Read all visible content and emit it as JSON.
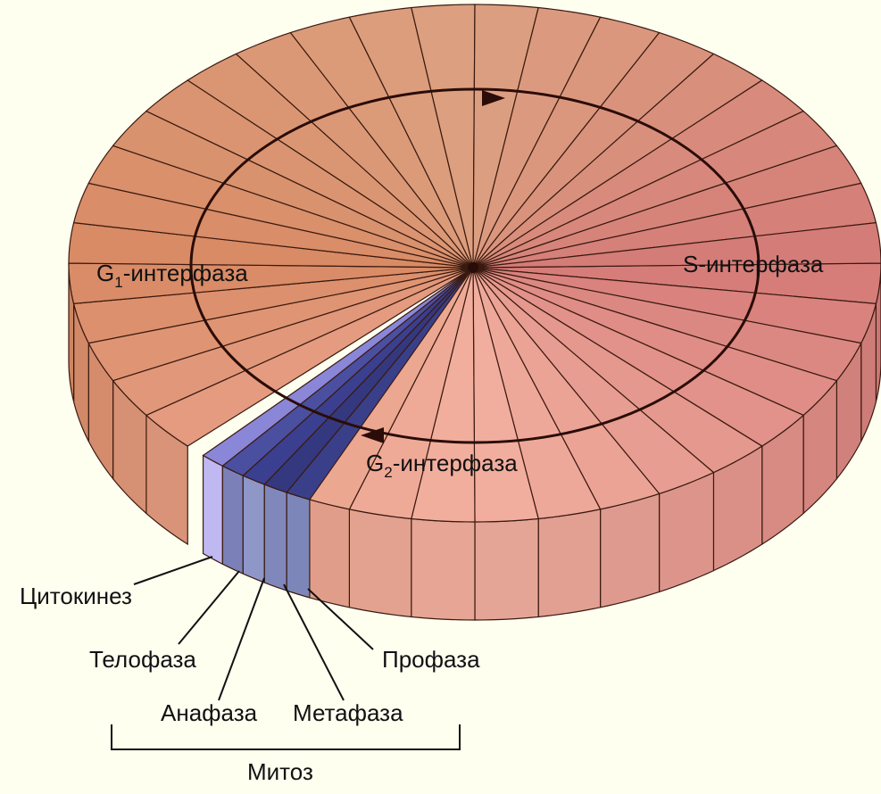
{
  "interphase": [
    {
      "letter": "G",
      "subscript": "1",
      "suffix": "-интерфаза"
    },
    {
      "text": "S-интерфаза"
    },
    {
      "letter": "G",
      "subscript": "2",
      "suffix": "-интерфаза"
    }
  ],
  "mitosis": {
    "title": "Митоз",
    "phases": [
      "Цитокинез",
      "Телофаза",
      "Анафаза",
      "Метафаза",
      "Профаза"
    ]
  }
}
